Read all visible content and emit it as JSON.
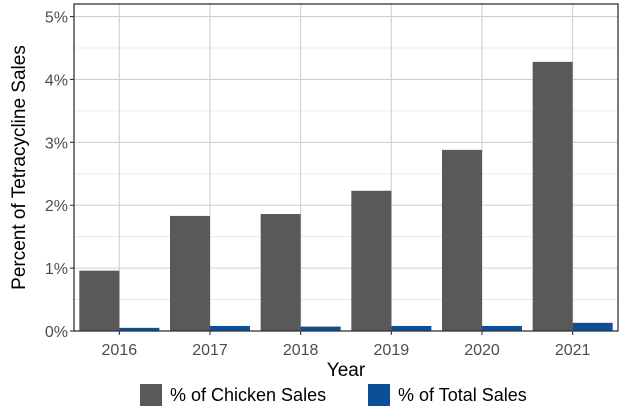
{
  "chart_data": {
    "type": "bar",
    "title": "",
    "xlabel": "Year",
    "ylabel": "Percent of Tetracycline Sales",
    "categories": [
      "2016",
      "2017",
      "2018",
      "2019",
      "2020",
      "2021"
    ],
    "series": [
      {
        "name": "% of Chicken Sales",
        "color": "#595959",
        "values": [
          0.96,
          1.83,
          1.86,
          2.23,
          2.88,
          4.28
        ]
      },
      {
        "name": "% of Total Sales",
        "color": "#0b4f96",
        "values": [
          0.05,
          0.08,
          0.07,
          0.08,
          0.08,
          0.13
        ]
      }
    ],
    "ylim": [
      0,
      5.2
    ],
    "y_ticks": [
      0,
      1,
      2,
      3,
      4,
      5
    ],
    "y_tick_labels": [
      "0%",
      "1%",
      "2%",
      "3%",
      "4%",
      "5%"
    ],
    "grid": true,
    "legend_position": "bottom"
  }
}
